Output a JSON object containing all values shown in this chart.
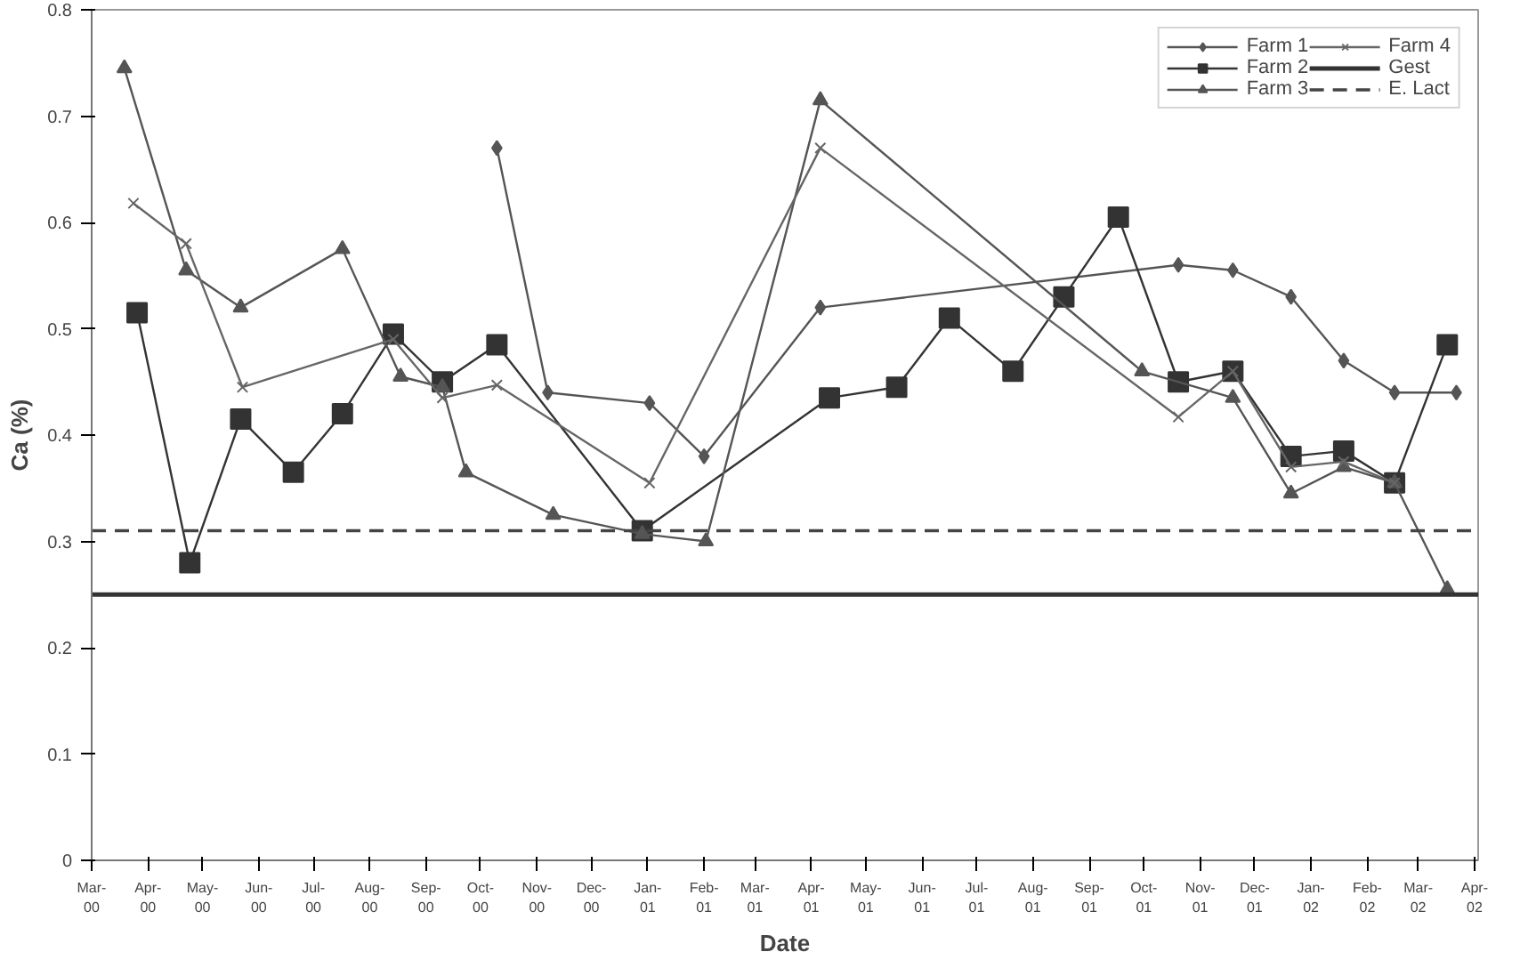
{
  "chart_data": {
    "type": "line",
    "xlabel": "Date",
    "ylabel": "Ca (%)",
    "xlim": [
      "2000-03-01",
      "2002-04-03"
    ],
    "ylim": [
      0,
      0.8
    ],
    "yticks": [
      0,
      0.1,
      0.2,
      0.3,
      0.4,
      0.5,
      0.6,
      0.7,
      0.8
    ],
    "xticks": [
      {
        "value": "2000-03-01",
        "label": "Mar-00"
      },
      {
        "value": "2000-04-01",
        "label": "Apr-00"
      },
      {
        "value": "2000-05-01",
        "label": "May-00"
      },
      {
        "value": "2000-06-01",
        "label": "Jun-00"
      },
      {
        "value": "2000-07-01",
        "label": "Jul-00"
      },
      {
        "value": "2000-08-01",
        "label": "Aug-00"
      },
      {
        "value": "2000-09-01",
        "label": "Sep-00"
      },
      {
        "value": "2000-10-01",
        "label": "Oct-00"
      },
      {
        "value": "2000-11-01",
        "label": "Nov-00"
      },
      {
        "value": "2000-12-01",
        "label": "Dec-00"
      },
      {
        "value": "2001-01-01",
        "label": "Jan-01"
      },
      {
        "value": "2001-02-01",
        "label": "Feb-01"
      },
      {
        "value": "2001-03-01",
        "label": "Mar-01"
      },
      {
        "value": "2001-04-01",
        "label": "Apr-01"
      },
      {
        "value": "2001-05-01",
        "label": "May-01"
      },
      {
        "value": "2001-06-01",
        "label": "Jun-01"
      },
      {
        "value": "2001-07-01",
        "label": "Jul-01"
      },
      {
        "value": "2001-08-01",
        "label": "Aug-01"
      },
      {
        "value": "2001-09-01",
        "label": "Sep-01"
      },
      {
        "value": "2001-10-01",
        "label": "Oct-01"
      },
      {
        "value": "2001-11-01",
        "label": "Nov-01"
      },
      {
        "value": "2001-12-01",
        "label": "Dec-01"
      },
      {
        "value": "2002-01-01",
        "label": "Jan-02"
      },
      {
        "value": "2002-02-01",
        "label": "Feb-02"
      },
      {
        "value": "2002-03-01",
        "label": "Mar-02"
      },
      {
        "value": "2002-04-01",
        "label": "Apr-02"
      }
    ],
    "grid": false,
    "legend": "top right",
    "line_style": "solid",
    "series": [
      {
        "name": "Farm 1",
        "color": "#555555",
        "marker": "diamond",
        "x": [
          "2000-10-10",
          "2000-11-07",
          "2001-01-02",
          "2001-02-01",
          "2001-04-06",
          "2001-10-20",
          "2001-11-19",
          "2001-12-21",
          "2002-01-19",
          "2002-02-16",
          "2002-03-22"
        ],
        "values": [
          0.67,
          0.44,
          0.43,
          0.38,
          0.52,
          0.56,
          0.555,
          0.53,
          0.47,
          0.44,
          0.44
        ]
      },
      {
        "name": "Farm 2",
        "color": "#333333",
        "marker": "square",
        "x": [
          "2000-03-26",
          "2000-04-24",
          "2000-05-22",
          "2000-06-20",
          "2000-07-17",
          "2000-08-14",
          "2000-09-10",
          "2000-10-10",
          "2000-12-29",
          "2001-04-11",
          "2001-05-18",
          "2001-06-16",
          "2001-07-21",
          "2001-08-18",
          "2001-09-17",
          "2001-10-20",
          "2001-11-19",
          "2001-12-21",
          "2002-01-19",
          "2002-02-16",
          "2002-03-17"
        ],
        "values": [
          0.515,
          0.28,
          0.415,
          0.365,
          0.42,
          0.495,
          0.45,
          0.485,
          0.31,
          0.435,
          0.445,
          0.51,
          0.46,
          0.53,
          0.605,
          0.45,
          0.46,
          0.38,
          0.385,
          0.355,
          0.485
        ]
      },
      {
        "name": "Farm 3",
        "color": "#555555",
        "marker": "triangle",
        "x": [
          "2000-03-19",
          "2000-04-22",
          "2000-05-22",
          "2000-07-17",
          "2000-08-18",
          "2000-09-10",
          "2000-09-23",
          "2000-11-10",
          "2000-12-29",
          "2001-02-02",
          "2001-04-06",
          "2001-09-30",
          "2001-11-19",
          "2001-12-21",
          "2002-01-19",
          "2002-02-16",
          "2002-03-17"
        ],
        "values": [
          0.745,
          0.555,
          0.52,
          0.575,
          0.455,
          0.445,
          0.365,
          0.325,
          0.307,
          0.3,
          0.715,
          0.46,
          0.435,
          0.345,
          0.37,
          0.355,
          0.255
        ]
      },
      {
        "name": "Farm 4",
        "color": "#666666",
        "marker": "cross",
        "x": [
          "2000-03-24",
          "2000-04-22",
          "2000-05-23",
          "2000-08-14",
          "2000-09-10",
          "2000-10-10",
          "2001-01-02",
          "2001-04-06",
          "2001-10-20",
          "2001-11-19",
          "2001-12-21",
          "2002-01-19",
          "2002-02-16"
        ],
        "values": [
          0.618,
          0.58,
          0.445,
          0.49,
          0.435,
          0.447,
          0.355,
          0.67,
          0.417,
          0.46,
          0.37,
          0.375,
          0.355
        ]
      }
    ],
    "ref_lines": [
      {
        "axis": "y",
        "value": 0.25,
        "label": "Gest",
        "color": "#333333",
        "line_style": "solid"
      },
      {
        "axis": "y",
        "value": 0.31,
        "label": "E. Lact",
        "color": "#444444",
        "line_style": "dashed"
      }
    ]
  }
}
